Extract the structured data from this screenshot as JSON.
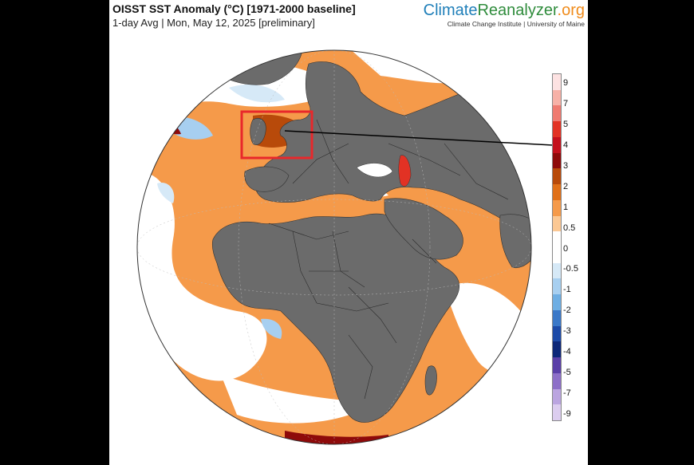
{
  "header": {
    "title": "OISST SST Anomaly (°C) [1971-2000 baseline]",
    "subtitle": "1-day Avg | Mon, May 12, 2025 [preliminary]"
  },
  "brand": {
    "part1": "Climate",
    "part2": "Reanalyzer",
    "part3": ".org",
    "tagline": "Climate Change Institute | University of Maine",
    "colors": {
      "climate": "#1f7fb9",
      "reanalyzer": "#2f8c3c",
      "org": "#f08c1c"
    }
  },
  "legend": {
    "labels": [
      "9",
      "7",
      "5",
      "4",
      "3",
      "2",
      "1",
      "0.5",
      "0",
      "-0.5",
      "-1",
      "-2",
      "-3",
      "-4",
      "-5",
      "-7",
      "-9"
    ],
    "colors": [
      "#fde2e2",
      "#f7b1a7",
      "#ef7a70",
      "#e23224",
      "#c4101c",
      "#8e0a0a",
      "#b84a0a",
      "#e07018",
      "#f59a4a",
      "#fbc894",
      "#ffffff",
      "#ffffff",
      "#d6e9f7",
      "#a7cff0",
      "#6eaee3",
      "#3a78c8",
      "#1c4aa8",
      "#0c2778",
      "#5a3fa8",
      "#8d6fc8",
      "#bba5e0",
      "#dccdef"
    ]
  },
  "map": {
    "projection": "orthographic",
    "center": "Africa / Europe",
    "land_color": "#6b6b6b",
    "ocean_warm_color": "#f59a4a",
    "ocean_neutral_color": "#ffffff",
    "highlight_box_color": "#e8282b"
  }
}
